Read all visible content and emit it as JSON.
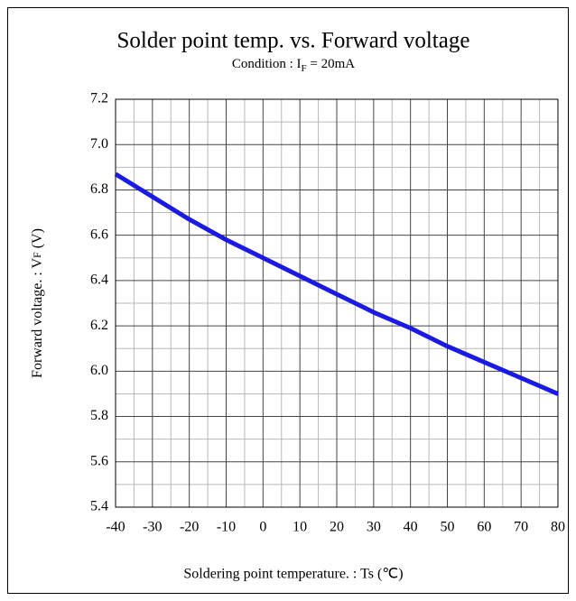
{
  "chart_data": {
    "type": "line",
    "title": "Solder point temp. vs. Forward voltage",
    "subtitle_parts": [
      "Condition : I",
      "F",
      " = 20mA"
    ],
    "y_label_parts": [
      "Forward voltage. : V",
      "F",
      " (V)"
    ],
    "x_label": "Soldering point temperature. : Ts (℃)",
    "x": [
      -40,
      -30,
      -20,
      -10,
      0,
      10,
      20,
      30,
      40,
      50,
      60,
      70,
      80
    ],
    "series": [
      {
        "color": "#1a1ae0",
        "values": [
          6.87,
          6.77,
          6.67,
          6.58,
          6.5,
          6.42,
          6.34,
          6.26,
          6.19,
          6.11,
          6.04,
          5.97,
          5.9
        ]
      }
    ],
    "xlim": [
      -40,
      80
    ],
    "ylim": [
      5.4,
      7.2
    ],
    "xticks": [
      -40,
      -30,
      -20,
      -10,
      0,
      10,
      20,
      30,
      40,
      50,
      60,
      70,
      80
    ],
    "yticks": [
      5.4,
      5.6,
      5.8,
      {
        "value": 6,
        "label": "6.0"
      },
      6.2,
      6.4,
      6.6,
      6.8,
      {
        "value": 7,
        "label": "7.0"
      },
      7.2
    ],
    "grid": true,
    "minor_grid": true
  }
}
